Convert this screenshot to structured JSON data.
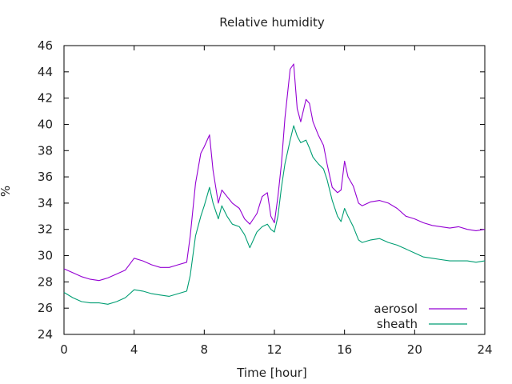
{
  "chart_data": {
    "type": "line",
    "title": "Relative humidity",
    "xlabel": "Time [hour]",
    "ylabel": "%",
    "xlim": [
      0,
      24
    ],
    "ylim": [
      24,
      46
    ],
    "xticks": [
      0,
      4,
      8,
      12,
      16,
      20,
      24
    ],
    "yticks": [
      24,
      26,
      28,
      30,
      32,
      34,
      36,
      38,
      40,
      42,
      44,
      46
    ],
    "grid": false,
    "legend": "bottom-right",
    "series": [
      {
        "name": "aerosol",
        "color": "#9400d3",
        "x": [
          0,
          0.5,
          1,
          1.5,
          2,
          2.5,
          3,
          3.5,
          4,
          4.5,
          5,
          5.5,
          6,
          6.5,
          7,
          7.2,
          7.5,
          7.8,
          8,
          8.3,
          8.5,
          8.8,
          9,
          9.3,
          9.6,
          10,
          10.3,
          10.6,
          11,
          11.3,
          11.6,
          11.8,
          12,
          12.2,
          12.4,
          12.6,
          12.9,
          13.1,
          13.3,
          13.5,
          13.8,
          14,
          14.2,
          14.5,
          14.8,
          15,
          15.3,
          15.6,
          15.8,
          16,
          16.2,
          16.5,
          16.8,
          17,
          17.5,
          18,
          18.5,
          19,
          19.5,
          20,
          20.5,
          21,
          21.5,
          22,
          22.5,
          23,
          23.5,
          24
        ],
        "y": [
          29.0,
          28.7,
          28.4,
          28.2,
          28.1,
          28.3,
          28.6,
          28.9,
          29.8,
          29.6,
          29.3,
          29.1,
          29.1,
          29.3,
          29.5,
          31.5,
          35.5,
          37.8,
          38.3,
          39.2,
          36.5,
          34.0,
          35.0,
          34.5,
          34.0,
          33.6,
          32.8,
          32.4,
          33.2,
          34.5,
          34.8,
          33.0,
          32.5,
          34.5,
          37.0,
          40.5,
          44.2,
          44.6,
          41.2,
          40.2,
          41.9,
          41.6,
          40.2,
          39.2,
          38.4,
          37.0,
          35.2,
          34.8,
          35.0,
          37.2,
          36.0,
          35.3,
          34.0,
          33.8,
          34.1,
          34.2,
          34.0,
          33.6,
          33.0,
          32.8,
          32.5,
          32.3,
          32.2,
          32.1,
          32.2,
          32.0,
          31.9,
          32.0
        ]
      },
      {
        "name": "sheath",
        "color": "#009e73",
        "x": [
          0,
          0.5,
          1,
          1.5,
          2,
          2.5,
          3,
          3.5,
          4,
          4.5,
          5,
          5.5,
          6,
          6.5,
          7,
          7.2,
          7.5,
          7.8,
          8,
          8.3,
          8.5,
          8.8,
          9,
          9.3,
          9.6,
          10,
          10.3,
          10.6,
          11,
          11.3,
          11.6,
          11.8,
          12,
          12.2,
          12.4,
          12.6,
          12.9,
          13.1,
          13.3,
          13.5,
          13.8,
          14,
          14.2,
          14.5,
          14.8,
          15,
          15.3,
          15.6,
          15.8,
          16,
          16.2,
          16.5,
          16.8,
          17,
          17.5,
          18,
          18.5,
          19,
          19.5,
          20,
          20.5,
          21,
          21.5,
          22,
          22.5,
          23,
          23.5,
          24
        ],
        "y": [
          27.2,
          26.8,
          26.5,
          26.4,
          26.4,
          26.3,
          26.5,
          26.8,
          27.4,
          27.3,
          27.1,
          27.0,
          26.9,
          27.1,
          27.3,
          28.5,
          31.5,
          33.0,
          33.8,
          35.2,
          34.0,
          32.8,
          33.8,
          33.0,
          32.4,
          32.2,
          31.6,
          30.6,
          31.8,
          32.2,
          32.4,
          32.0,
          31.8,
          33.0,
          35.2,
          37.0,
          38.8,
          39.9,
          39.1,
          38.6,
          38.8,
          38.2,
          37.5,
          37.0,
          36.6,
          35.8,
          34.2,
          33.0,
          32.6,
          33.6,
          33.0,
          32.2,
          31.2,
          31.0,
          31.2,
          31.3,
          31.0,
          30.8,
          30.5,
          30.2,
          29.9,
          29.8,
          29.7,
          29.6,
          29.6,
          29.6,
          29.5,
          29.6
        ]
      }
    ]
  }
}
